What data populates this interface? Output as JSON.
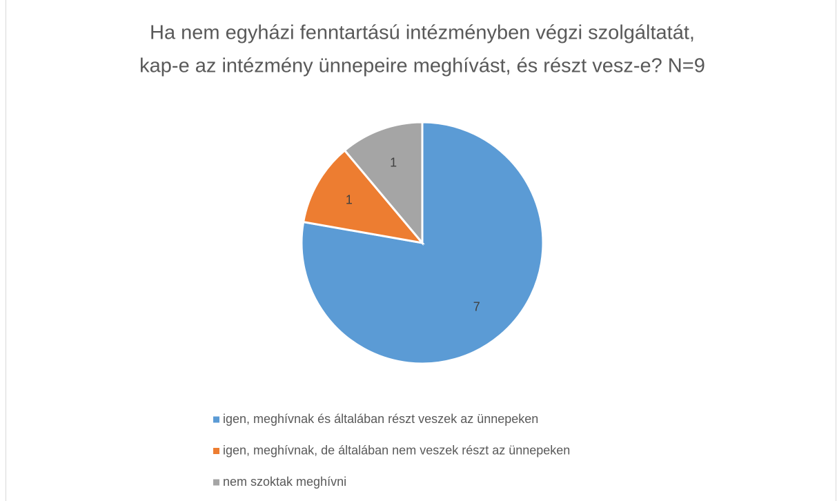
{
  "chart_data": {
    "type": "pie",
    "title": [
      "Ha nem egyházi fenntartású intézményben végzi szolgáltatát,",
      "kap-e az intézmény ünnepeire meghívást, és részt vesz-e? N=9"
    ],
    "categories": [
      "igen, meghívnak és általában részt veszek az ünnepeken",
      "igen, meghívnak, de általában nem veszek részt az ünnepeken",
      "nem szoktak meghívni"
    ],
    "values": [
      7,
      1,
      1
    ],
    "colors": [
      "#5b9bd5",
      "#ed7d31",
      "#a5a5a5"
    ],
    "legend": "bottom"
  }
}
